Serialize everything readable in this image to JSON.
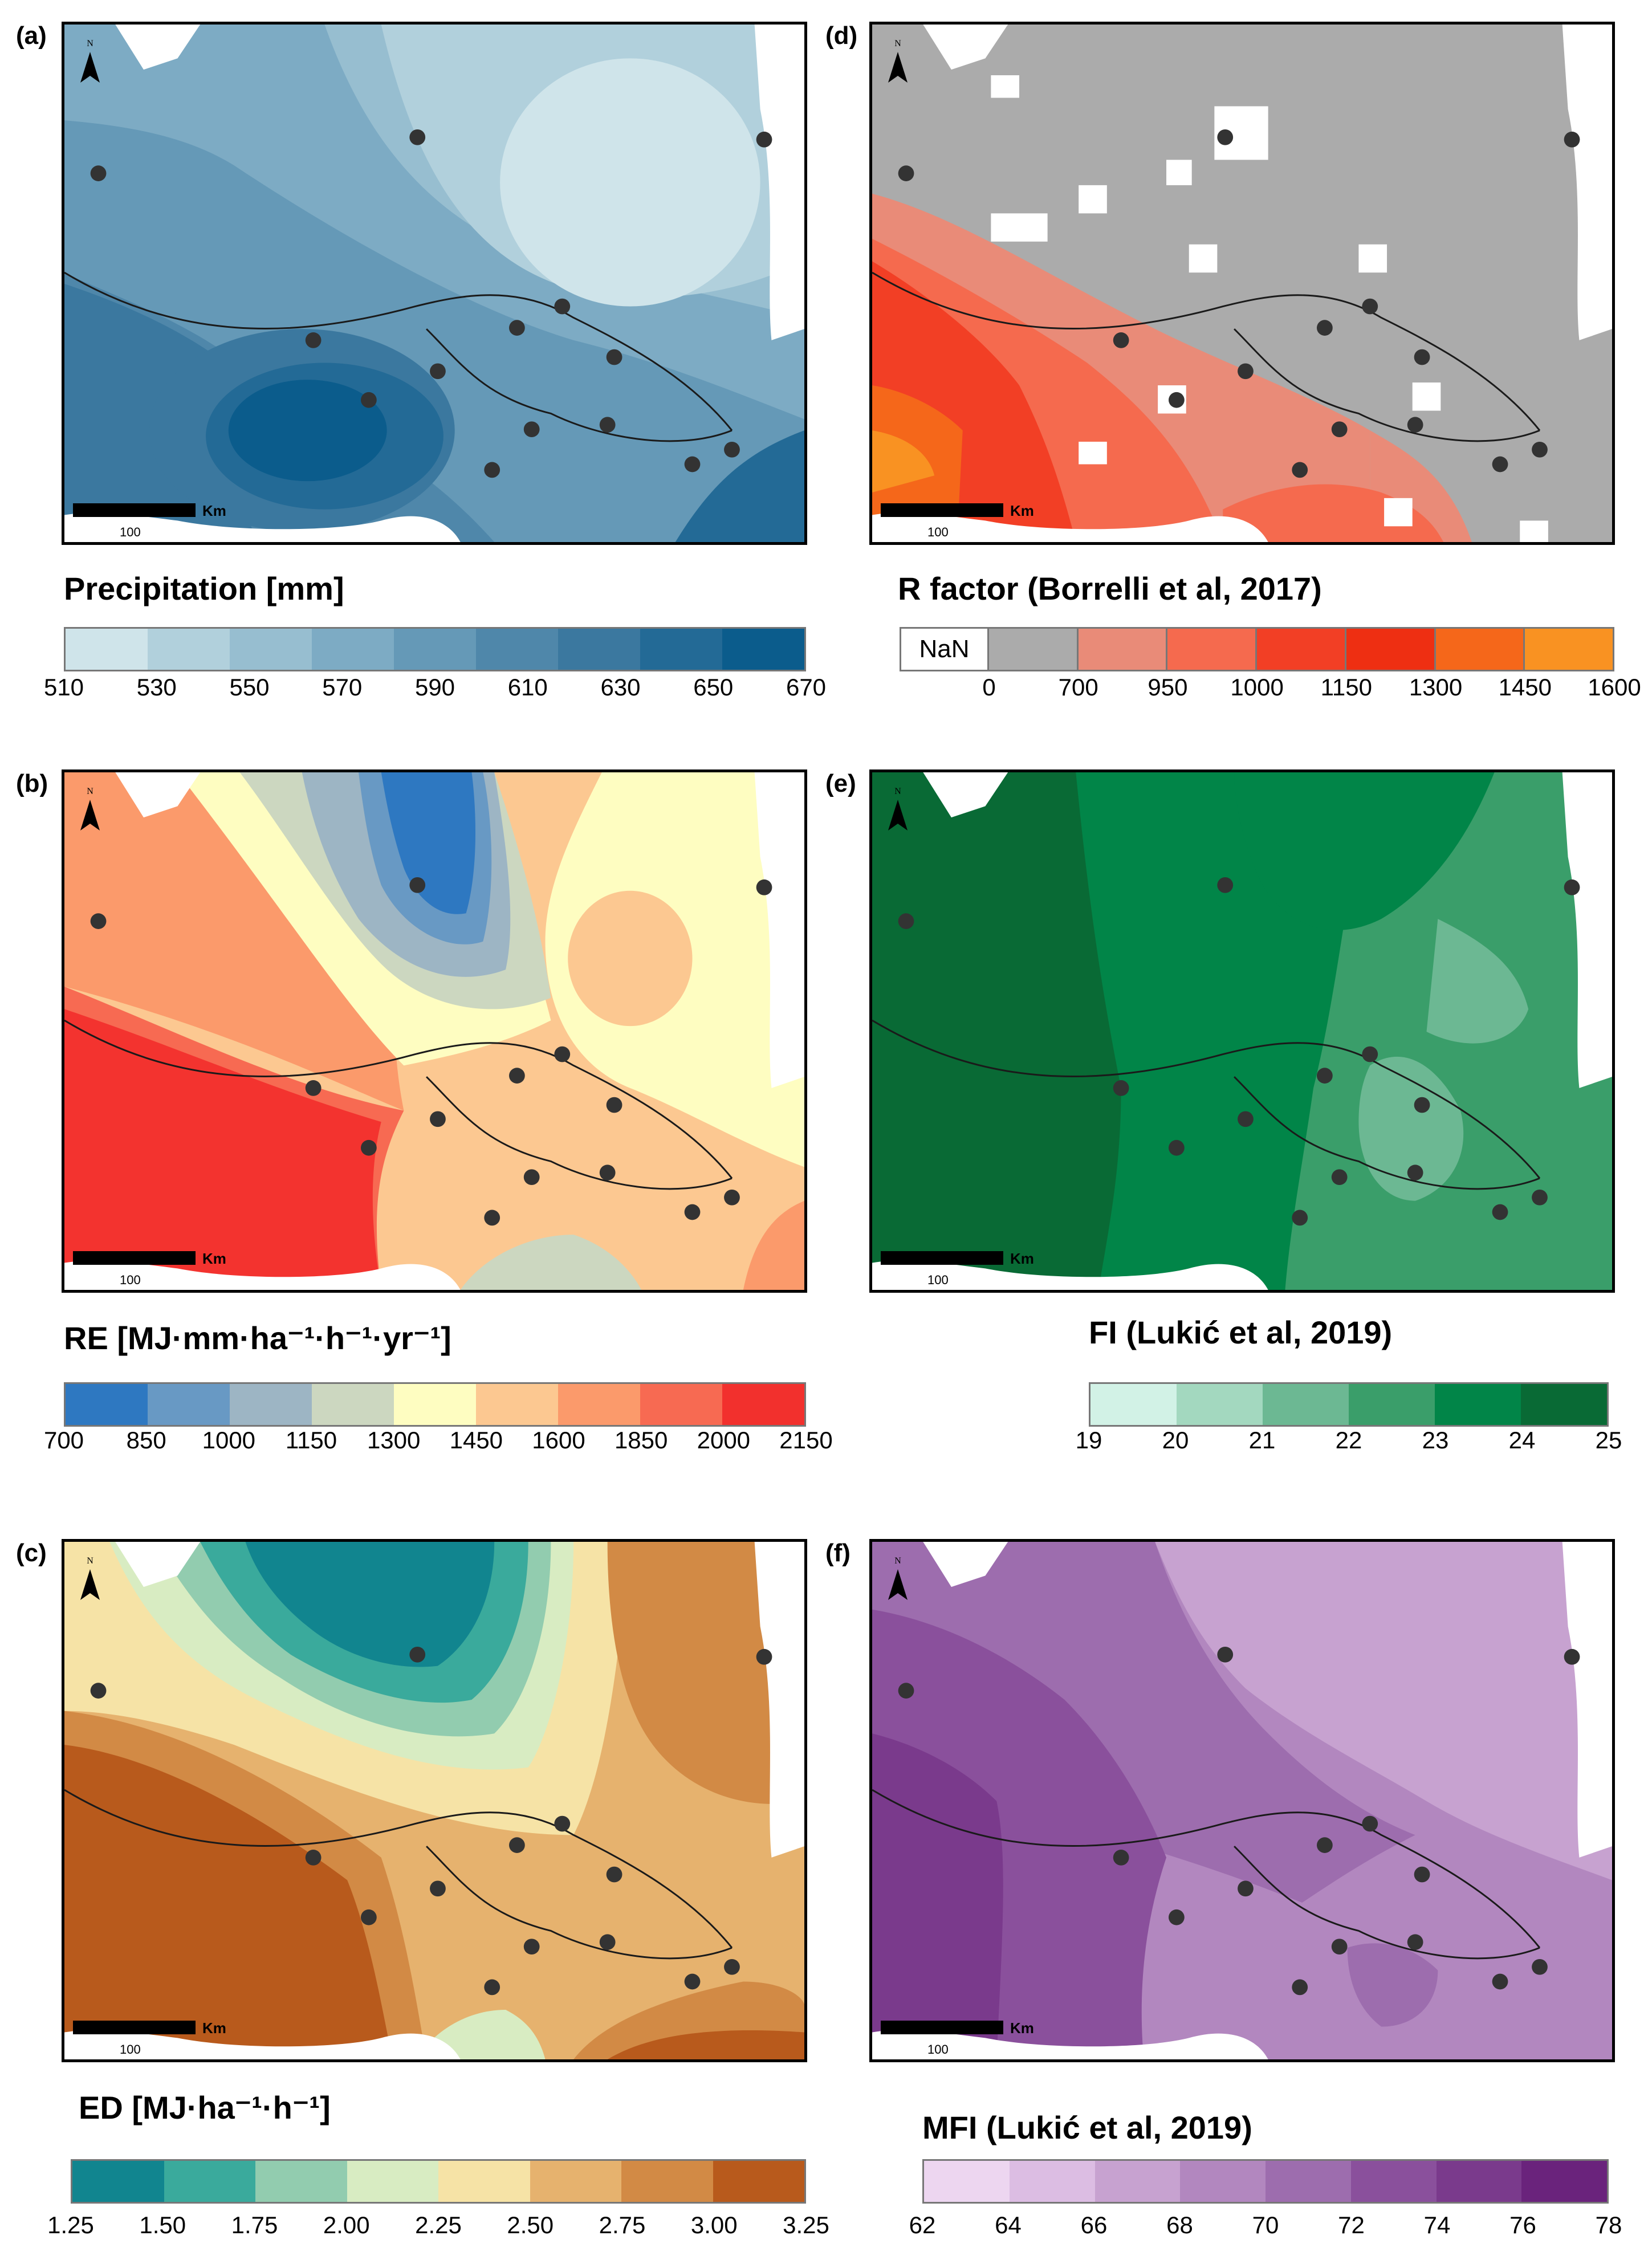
{
  "panels": {
    "a": {
      "tag": "(a)",
      "title": "Precipitation [mm]",
      "ticks": [
        "510",
        "530",
        "550",
        "570",
        "590",
        "610",
        "630",
        "650",
        "670"
      ],
      "colors": [
        "#cfe4ea",
        "#b1d0dc",
        "#97bed0",
        "#7dabc4",
        "#6599b7",
        "#4f87aa",
        "#3b789f",
        "#236a96",
        "#0b5c8c"
      ]
    },
    "b": {
      "tag": "(b)",
      "title": "RE [MJ·mm·ha⁻¹·h⁻¹·yr⁻¹]",
      "ticks": [
        "700",
        "850",
        "1000",
        "1150",
        "1300",
        "1450",
        "1600",
        "1850",
        "2000",
        "2150"
      ],
      "colors": [
        "#2e78c1",
        "#6899c4",
        "#9db5c4",
        "#ccd7c0",
        "#fefdc1",
        "#fcc891",
        "#fb9a6b",
        "#f76a52",
        "#f2302d"
      ]
    },
    "c": {
      "tag": "(c)",
      "title": "ED [MJ·ha⁻¹·h⁻¹]",
      "ticks": [
        "1.25",
        "1.50",
        "1.75",
        "2.00",
        "2.25",
        "2.50",
        "2.75",
        "3.00",
        "3.25"
      ],
      "colors": [
        "#11858f",
        "#3aaa9c",
        "#92ccaf",
        "#d8ecc2",
        "#f6e3a6",
        "#e6b26e",
        "#d28a45",
        "#b85a1c"
      ]
    },
    "d": {
      "tag": "(d)",
      "title": "R factor (Borrelli et al, 2017)",
      "nan_label": "NaN",
      "ticks": [
        "0",
        "700",
        "950",
        "1000",
        "1150",
        "1300",
        "1450",
        "1600"
      ],
      "colors": [
        "#ababab",
        "#e98b78",
        "#f56a4e",
        "#f23f25",
        "#ee2f12",
        "#f5671a",
        "#f99222"
      ]
    },
    "e": {
      "tag": "(e)",
      "title": "FI (Lukić et al, 2019)",
      "ticks": [
        "19",
        "20",
        "21",
        "22",
        "23",
        "24",
        "25"
      ],
      "colors": [
        "#d2f2e6",
        "#a3d8bf",
        "#6cb893",
        "#3a9e6a",
        "#018548",
        "#096a35"
      ]
    },
    "f": {
      "tag": "(f)",
      "title": "MFI (Lukić et al, 2019)",
      "ticks": [
        "62",
        "64",
        "66",
        "68",
        "70",
        "72",
        "74",
        "76",
        "78"
      ],
      "colors": [
        "#edd6f0",
        "#dcbde3",
        "#c7a2d0",
        "#b287bf",
        "#9d6dae",
        "#8a509c",
        "#7a3a8c",
        "#6a237c"
      ]
    }
  },
  "scale": {
    "unit": "Km",
    "value": "100"
  },
  "north_label": "N"
}
